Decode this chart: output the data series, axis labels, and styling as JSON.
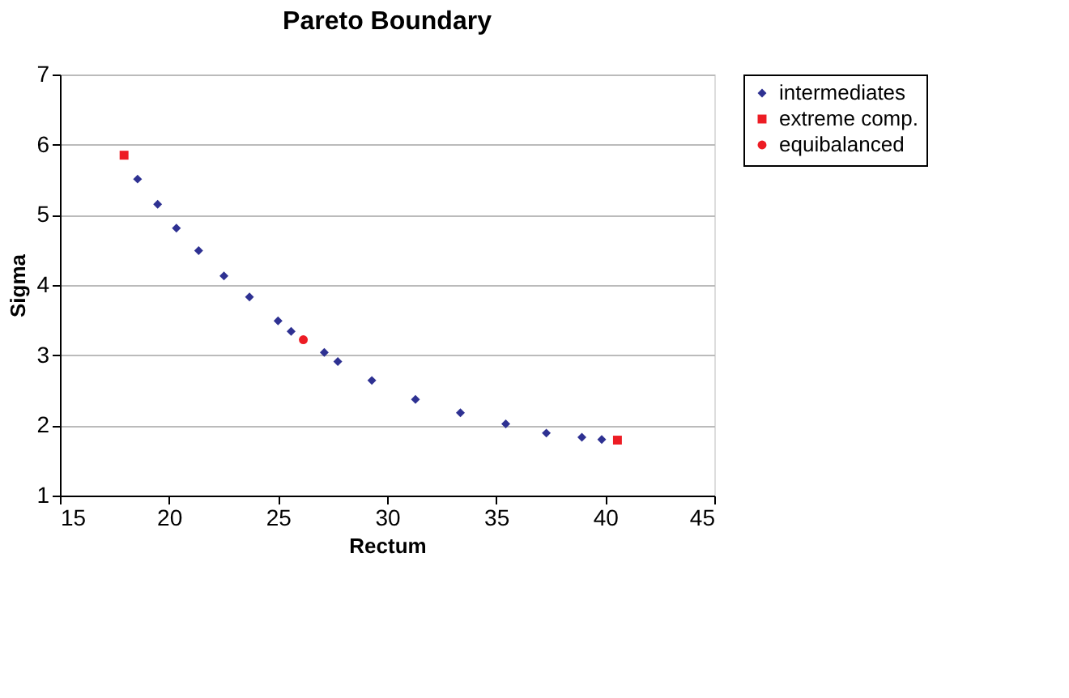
{
  "chart_data": {
    "type": "scatter",
    "title": "Pareto Boundary",
    "xlabel": "Rectum",
    "ylabel": "Sigma",
    "xlim": [
      15,
      45
    ],
    "xticks": [
      15,
      20,
      25,
      30,
      35,
      40,
      45
    ],
    "ylim": [
      1,
      7
    ],
    "yticks": [
      1,
      2,
      3,
      4,
      5,
      6,
      7
    ],
    "grid": "y",
    "legend": "right",
    "series": [
      {
        "name": "intermediates",
        "color": "#2e3192",
        "marker": "diamond",
        "x": [
          18.56,
          19.48,
          20.34,
          21.36,
          22.52,
          23.69,
          25.0,
          25.6,
          27.12,
          27.74,
          29.3,
          31.3,
          33.36,
          35.44,
          37.3,
          38.93,
          39.84
        ],
        "values": [
          5.51,
          5.15,
          4.81,
          4.49,
          4.13,
          3.83,
          3.49,
          3.34,
          3.04,
          2.91,
          2.64,
          2.37,
          2.18,
          2.02,
          1.89,
          1.83,
          1.8
        ]
      },
      {
        "name": "extreme comp.",
        "color": "#ed1c24",
        "marker": "square",
        "x": [
          17.94,
          40.56
        ],
        "values": [
          5.85,
          1.79
        ]
      },
      {
        "name": "equibalanced",
        "color": "#ed1c24",
        "marker": "circle",
        "x": [
          26.16
        ],
        "values": [
          3.22
        ]
      }
    ]
  }
}
